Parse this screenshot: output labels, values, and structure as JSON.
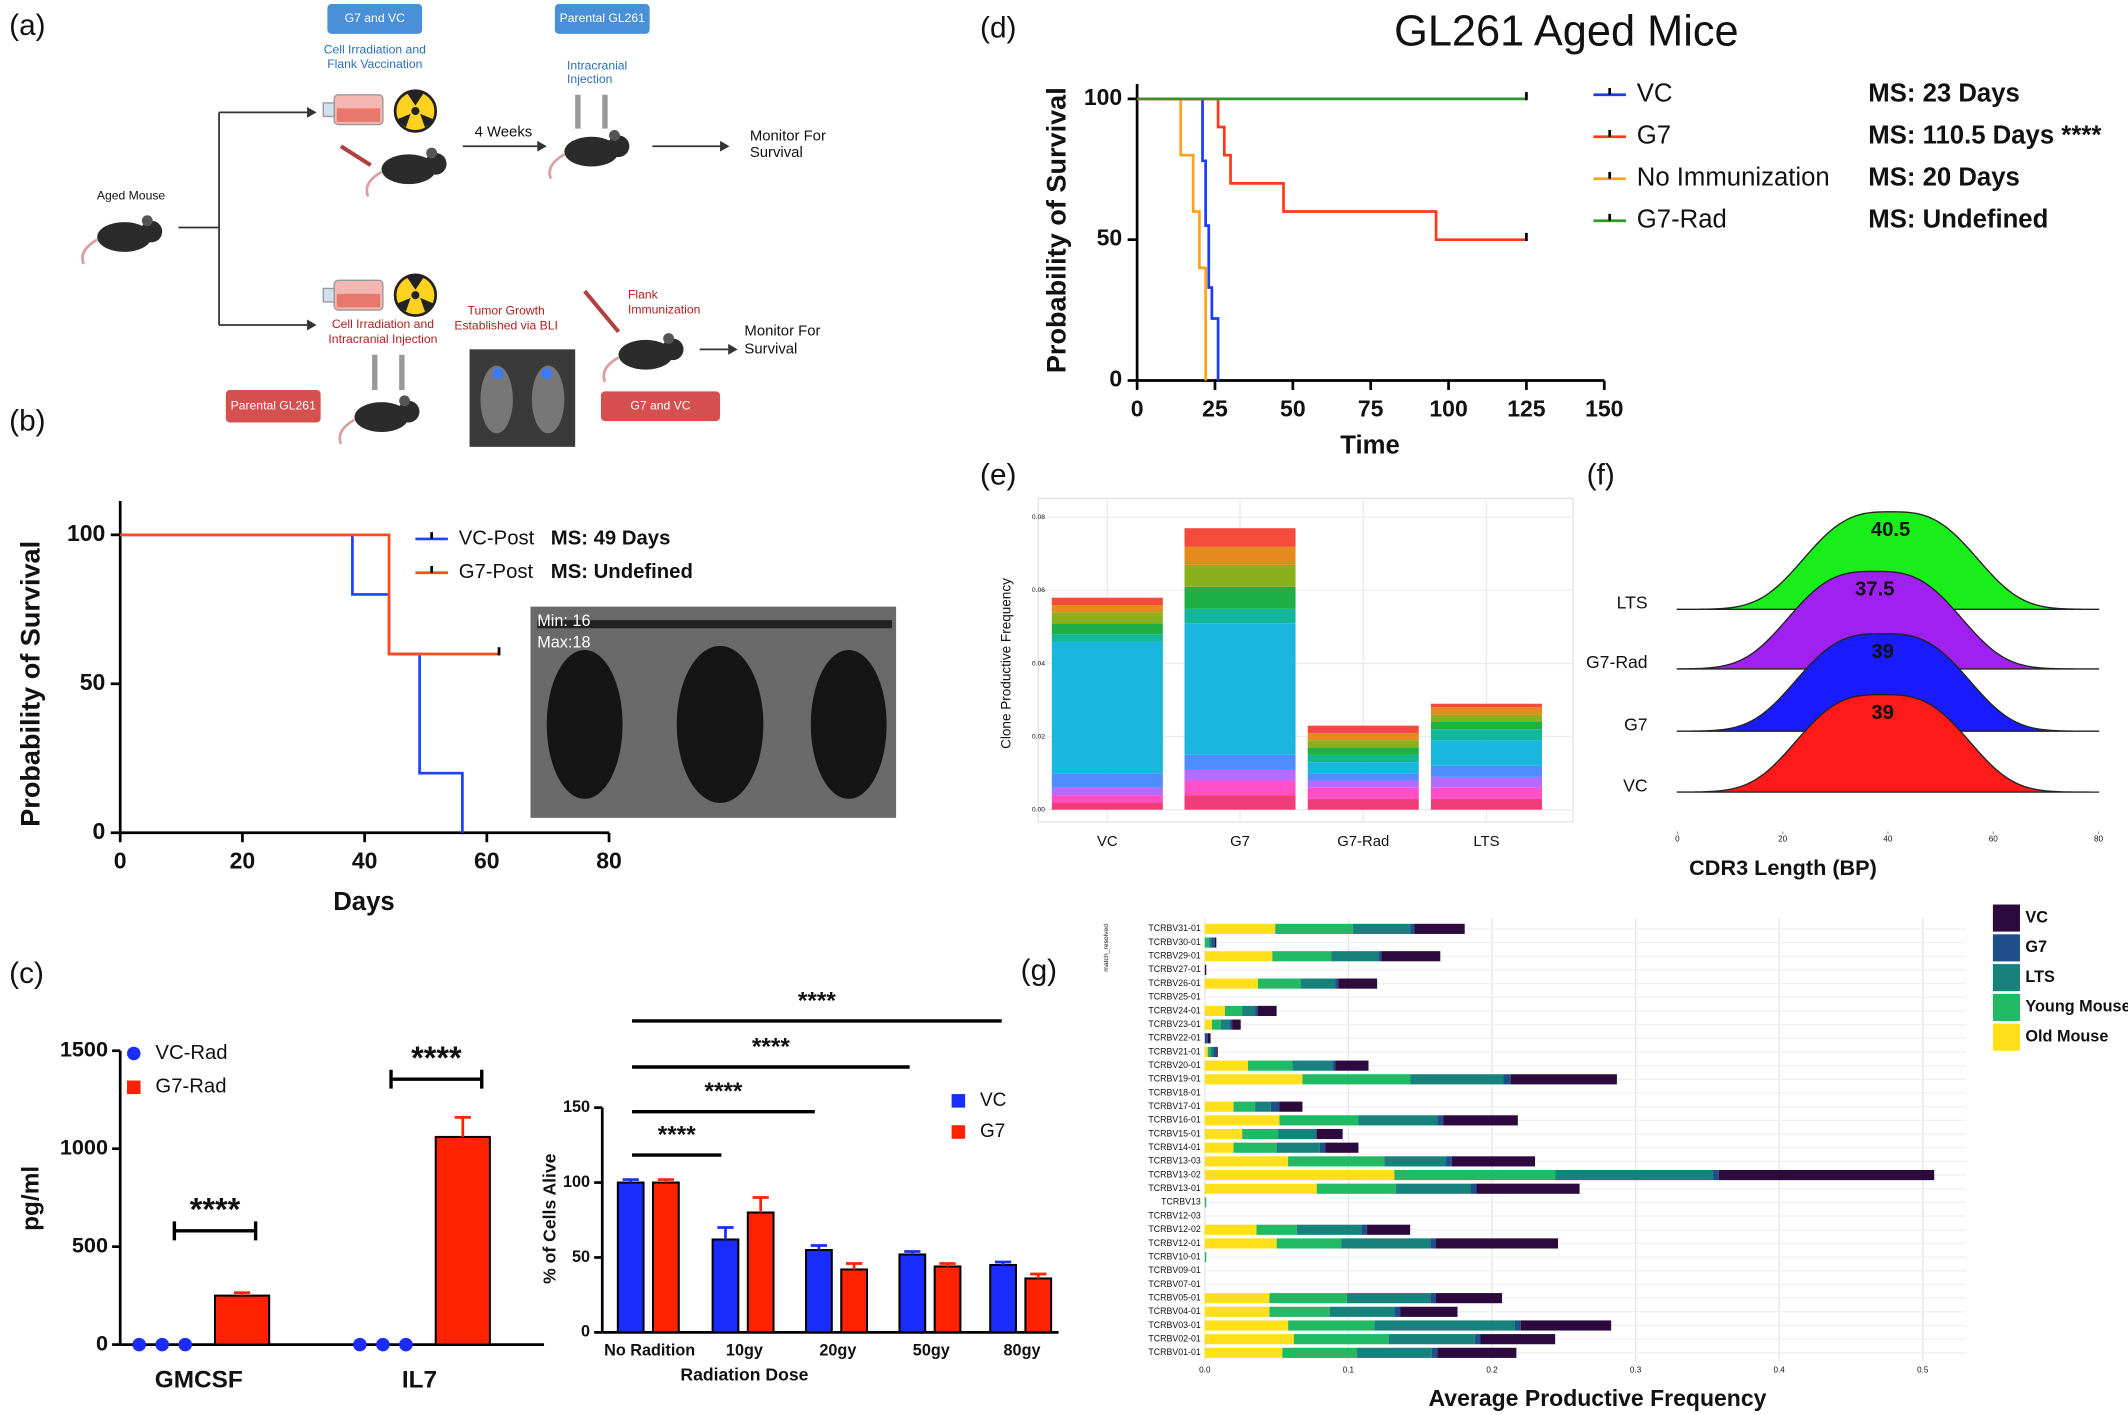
{
  "panel_labels": [
    "(a)",
    "(b)",
    "(c)",
    "(d)",
    "(e)",
    "(f)",
    "(g)"
  ],
  "diagram": {
    "start": "Aged Mouse",
    "top_box": "G7 and VC",
    "top_step1": [
      "Cell Irradiation and",
      "Flank Vaccination"
    ],
    "top_box2": "Parental GL261",
    "top_step2": [
      "Intracranial",
      "Injection"
    ],
    "top_interval": "4 Weeks",
    "top_outcome": [
      "Monitor For",
      "Survival"
    ],
    "bottom_step1": [
      "Cell Irradiation and",
      "Intracranial Injection"
    ],
    "bottom_step2": [
      "Tumor Growth",
      "Established via BLI"
    ],
    "bottom_step3": [
      "Flank",
      "Immunization"
    ],
    "bottom_outcome": [
      "Monitor For",
      "Survival"
    ],
    "bottom_box1": "Parental GL261",
    "bottom_box2": "G7 and VC"
  },
  "chart_data": [
    {
      "type": "survival",
      "xlabel": "Days",
      "ylabel": "Probability of Survival",
      "xlim": [
        0,
        80
      ],
      "xticks": [
        0,
        20,
        40,
        60,
        80
      ],
      "ylim": [
        0,
        100
      ],
      "yticks": [
        0,
        50,
        100
      ],
      "series": [
        {
          "name": "VC-Post",
          "label": "MS: 49 Days",
          "color": "#2040ff",
          "x": [
            0,
            38,
            44,
            49,
            56
          ],
          "values": [
            100,
            80,
            60,
            20,
            0
          ]
        },
        {
          "name": "G7-Post",
          "label": "MS: Undefined",
          "color": "#ff4a1a",
          "x": [
            0,
            44,
            62
          ],
          "values": [
            100,
            60,
            60
          ]
        }
      ],
      "inset": [
        "Min: 16",
        "Max:18"
      ]
    },
    {
      "type": "survival",
      "title": "GL261 Aged Mice",
      "xlabel": "Time",
      "ylabel": "Probability of Survival",
      "xlim": [
        0,
        150
      ],
      "xticks": [
        0,
        25,
        50,
        75,
        100,
        125,
        150
      ],
      "ylim": [
        0,
        100
      ],
      "yticks": [
        0,
        50,
        100
      ],
      "series": [
        {
          "name": "VC",
          "label": "MS: 23 Days",
          "color": "#1a3cff",
          "x": [
            0,
            21,
            22,
            23,
            24,
            26
          ],
          "values": [
            100,
            78,
            55,
            33,
            22,
            0
          ]
        },
        {
          "name": "G7",
          "label": "MS: 110.5 Days ****",
          "color": "#ff3a1a",
          "x": [
            0,
            26,
            28,
            30,
            47,
            96,
            125
          ],
          "values": [
            100,
            90,
            80,
            70,
            60,
            50,
            50
          ]
        },
        {
          "name": "No Immunization",
          "label": "MS: 20 Days",
          "color": "#ffa41a",
          "x": [
            0,
            14,
            18,
            20,
            22
          ],
          "values": [
            100,
            80,
            60,
            40,
            0
          ]
        },
        {
          "name": "G7-Rad",
          "label": "MS: Undefined",
          "color": "#2a9a2a",
          "x": [
            0,
            125
          ],
          "values": [
            100,
            100
          ]
        }
      ]
    },
    {
      "type": "bar",
      "ylabel": "pg/ml",
      "categories": [
        "GMCSF",
        "IL7"
      ],
      "ylim": [
        0,
        1500
      ],
      "yticks": [
        0,
        500,
        1000,
        1500
      ],
      "series": [
        {
          "name": "VC-Rad",
          "kind": "dots",
          "color": "#1a2cff",
          "values": [
            0,
            0
          ]
        },
        {
          "name": "G7-Rad",
          "kind": "bar",
          "color": "#ff2200",
          "values": [
            250,
            1060
          ],
          "errors": [
            15,
            100
          ]
        }
      ],
      "significance": [
        "****",
        "****"
      ]
    },
    {
      "type": "bar",
      "ylabel": "% of Cells Alive",
      "xlabel": "Radiation Dose",
      "categories": [
        "No Radition",
        "10gy",
        "20gy",
        "50gy",
        "80gy"
      ],
      "ylim": [
        0,
        150
      ],
      "yticks": [
        0,
        50,
        100,
        150
      ],
      "series": [
        {
          "name": "VC",
          "kind": "bar",
          "color": "#1a2cff",
          "values": [
            100,
            62,
            55,
            52,
            45
          ],
          "errors": [
            2,
            8,
            3,
            2,
            2
          ]
        },
        {
          "name": "G7",
          "kind": "bar",
          "color": "#ff2200",
          "values": [
            100,
            80,
            42,
            44,
            36
          ],
          "errors": [
            2,
            10,
            4,
            2,
            3
          ]
        }
      ],
      "significance": [
        "****",
        "****",
        "****",
        "****"
      ]
    },
    {
      "type": "stacked_bar",
      "ylabel": "Clone Productive Frequency",
      "categories": [
        "VC",
        "G7",
        "G7-Rad",
        "LTS"
      ],
      "ylim": [
        0,
        0.08
      ],
      "yticks": [
        {
          "value": 0,
          "label": "0.00"
        },
        {
          "value": 0.02,
          "label": "0.02"
        },
        {
          "value": 0.04,
          "label": "0.04"
        },
        {
          "value": 0.06,
          "label": "0.06"
        },
        {
          "value": 0.08,
          "label": "0.08"
        }
      ],
      "series": [
        {
          "color": "#f03c78",
          "values": [
            0.002,
            0.004,
            0.003,
            0.003
          ]
        },
        {
          "color": "#ff4fc8",
          "values": [
            0.002,
            0.004,
            0.003,
            0.003
          ]
        },
        {
          "color": "#b46cff",
          "values": [
            0.002,
            0.003,
            0.002,
            0.003
          ]
        },
        {
          "color": "#4f8cff",
          "values": [
            0.004,
            0.004,
            0.002,
            0.003
          ]
        },
        {
          "color": "#19b7de",
          "values": [
            0.036,
            0.036,
            0.003,
            0.007
          ]
        },
        {
          "color": "#12b79a",
          "values": [
            0.002,
            0.004,
            0.002,
            0.003
          ]
        },
        {
          "color": "#1fb045",
          "values": [
            0.003,
            0.006,
            0.002,
            0.002
          ]
        },
        {
          "color": "#8ab01c",
          "values": [
            0.003,
            0.006,
            0.002,
            0.002
          ]
        },
        {
          "color": "#e48a1e",
          "values": [
            0.002,
            0.005,
            0.002,
            0.002
          ]
        },
        {
          "color": "#f44b3c",
          "values": [
            0.002,
            0.005,
            0.002,
            0.001
          ]
        }
      ]
    },
    {
      "type": "ridgeline",
      "xlabel": "CDR3 Length (BP)",
      "xlim": [
        0,
        80
      ],
      "xticks": [
        0,
        20,
        40,
        60,
        80
      ],
      "series": [
        {
          "name": "VC",
          "color": "#ff1a1a",
          "value": 39
        },
        {
          "name": "G7",
          "color": "#1a1aff",
          "value": 39
        },
        {
          "name": "G7-Rad",
          "color": "#a020f0",
          "value": 37.5
        },
        {
          "name": "LTS",
          "color": "#1aee1a",
          "value": 40.5
        }
      ]
    },
    {
      "type": "stacked_barh",
      "xlabel": "Average Productive Frequency",
      "ylabel": "match_resolved",
      "categories": [
        "TCRBV31-01",
        "TCRBV30-01",
        "TCRBV29-01",
        "TCRBV27-01",
        "TCRBV26-01",
        "TCRBV25-01",
        "TCRBV24-01",
        "TCRBV23-01",
        "TCRBV22-01",
        "TCRBV21-01",
        "TCRBV20-01",
        "TCRBV19-01",
        "TCRBV18-01",
        "TCRBV17-01",
        "TCRBV16-01",
        "TCRBV15-01",
        "TCRBV14-01",
        "TCRBV13-03",
        "TCRBV13-02",
        "TCRBV13-01",
        "TCRBV13",
        "TCRBV12-03",
        "TCRBV12-02",
        "TCRBV12-01",
        "TCRBV10-01",
        "TCRBV09-01",
        "TCRBV07-01",
        "TCRBV05-01",
        "TCRBV04-01",
        "TCRBV03-01",
        "TCRBV02-01",
        "TCRBV01-01"
      ],
      "xlim": [
        0,
        0.53
      ],
      "xticks": [
        {
          "value": 0,
          "label": "0.0"
        },
        0.1,
        0.2,
        0.3,
        0.4,
        0.5
      ],
      "series": [
        {
          "name": "VC",
          "color": "#2d0a3d",
          "values": [
            0.035,
            0.001,
            0.041,
            0.001,
            0.027,
            0,
            0.013,
            0.006,
            0.002,
            0.001,
            0.023,
            0.074,
            0,
            0.016,
            0.052,
            0.018,
            0.023,
            0.058,
            0.15,
            0.072,
            0,
            0,
            0.03,
            0.085,
            0,
            0,
            0,
            0.046,
            0.04,
            0.063,
            0.052,
            0.055
          ]
        },
        {
          "name": "G7",
          "color": "#1f4f8a",
          "values": [
            0.003,
            0.002,
            0.002,
            0,
            0.002,
            0,
            0.002,
            0.002,
            0.002,
            0.002,
            0.002,
            0.005,
            0,
            0.006,
            0.004,
            0.001,
            0.004,
            0.004,
            0.004,
            0.004,
            0,
            0,
            0.004,
            0.004,
            0,
            0,
            0,
            0.004,
            0.004,
            0.004,
            0.004,
            0.004
          ]
        },
        {
          "name": "LTS",
          "color": "#17817c",
          "values": [
            0.04,
            0.002,
            0.033,
            0,
            0.024,
            0,
            0.009,
            0.006,
            0,
            0.002,
            0.028,
            0.065,
            0,
            0.011,
            0.055,
            0.026,
            0.03,
            0.043,
            0.11,
            0.052,
            0,
            0,
            0.045,
            0.062,
            0,
            0,
            0,
            0.058,
            0.045,
            0.098,
            0.06,
            0.052
          ]
        },
        {
          "name": "Young Mouse",
          "color": "#22b964",
          "values": [
            0.054,
            0.003,
            0.041,
            0,
            0.03,
            0,
            0.012,
            0.006,
            0,
            0.002,
            0.031,
            0.075,
            0,
            0.015,
            0.055,
            0.025,
            0.03,
            0.067,
            0.112,
            0.055,
            0.001,
            0,
            0.028,
            0.045,
            0.001,
            0,
            0,
            0.054,
            0.042,
            0.06,
            0.066,
            0.052
          ]
        },
        {
          "name": "Old Mouse",
          "color": "#ffe01a",
          "values": [
            0.049,
            0,
            0.047,
            0,
            0.037,
            0,
            0.014,
            0.005,
            0,
            0.002,
            0.03,
            0.068,
            0,
            0.02,
            0.052,
            0.026,
            0.02,
            0.058,
            0.132,
            0.078,
            0,
            0,
            0.036,
            0.05,
            0,
            0,
            0,
            0.045,
            0.045,
            0.058,
            0.062,
            0.054
          ]
        }
      ]
    }
  ]
}
